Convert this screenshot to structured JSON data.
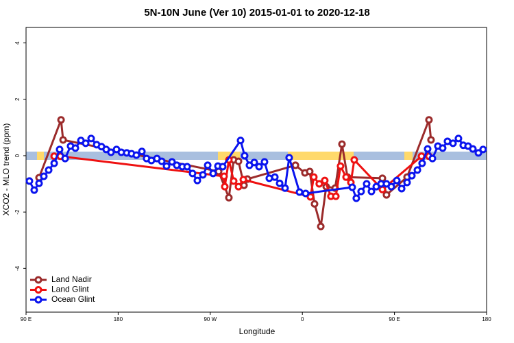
{
  "chart_data": {
    "type": "line",
    "title": "5N-10N June (Ver 10)   2015-01-01 to 2020-12-18",
    "xlabel": "Longitude",
    "ylabel": "XCO2 - MLO trend (ppm)",
    "xlim": [
      90,
      540
    ],
    "ylim": [
      -5.55,
      4.55
    ],
    "xticks": [
      {
        "value": 90,
        "label": "90 E"
      },
      180,
      {
        "value": 270,
        "label": "90 W"
      },
      {
        "value": 360,
        "label": "0"
      },
      {
        "value": 450,
        "label": "90 E"
      },
      {
        "value": 540,
        "label": "180"
      }
    ],
    "yticks": [
      -4,
      -2,
      0,
      2,
      4
    ],
    "grid": false,
    "legend": "bottom-left",
    "series": [
      {
        "name": "Land Nadir",
        "color": "#9b2b2b",
        "x": [
          102.7,
          124.2,
          126.2,
          278.2,
          288.2,
          292.9,
          297.6,
          303.0,
          306.3,
          353.2,
          362.5,
          367.2,
          371.9,
          378.0,
          383.3,
          392.0,
          398.7,
          404.1,
          438.2,
          442.2,
          462.3,
          483.7,
          485.7
        ],
        "values": [
          -0.78,
          1.27,
          0.56,
          -0.56,
          -1.49,
          -0.15,
          -0.2,
          -1.05,
          -0.83,
          -0.34,
          -0.61,
          -0.56,
          -1.71,
          -2.51,
          -1.1,
          -1.15,
          0.41,
          -0.76,
          -0.8,
          -1.39,
          -0.76,
          1.27,
          0.56
        ]
      },
      {
        "name": "Land Glint",
        "color": "#ee1111",
        "x": [
          117.5,
          123.5,
          283.5,
          284.2,
          288.2,
          292.9,
          297.6,
          302.3,
          367.9,
          371.2,
          376.5,
          381.9,
          387.9,
          392.7,
          397.3,
          402.7,
          407.4,
          410.7,
          438.2,
          476.4,
          483.7
        ],
        "values": [
          -0.02,
          -0.02,
          -0.73,
          -1.1,
          -0.15,
          -0.9,
          -1.1,
          -0.85,
          -1.46,
          -0.76,
          -1.0,
          -0.88,
          -1.44,
          -1.44,
          -0.37,
          -0.76,
          -0.95,
          -0.15,
          -1.2,
          -0.02,
          -0.02
        ]
      },
      {
        "name": "Ocean Glint",
        "color": "#0a14ee",
        "x": [
          93.3,
          98.0,
          102.7,
          107.4,
          112.1,
          117.5,
          122.8,
          128.2,
          133.5,
          138.2,
          143.6,
          148.3,
          153.6,
          159.0,
          163.7,
          168.3,
          173.0,
          178.4,
          183.1,
          188.4,
          193.1,
          197.8,
          203.2,
          207.8,
          212.5,
          217.9,
          222.6,
          227.3,
          232.6,
          237.3,
          242.7,
          247.4,
          252.7,
          257.4,
          262.8,
          267.5,
          272.8,
          277.5,
          282.2,
          299.6,
          303.6,
          308.3,
          313.0,
          317.7,
          323.0,
          327.7,
          333.1,
          337.8,
          343.1,
          347.1,
          357.2,
          363.2,
          408.7,
          412.7,
          417.4,
          422.8,
          427.5,
          432.2,
          436.9,
          442.2,
          446.9,
          452.3,
          457.0,
          462.3,
          467.0,
          472.4,
          477.0,
          482.4,
          487.1,
          492.4,
          497.1,
          501.8,
          507.2,
          512.5,
          517.2,
          521.9,
          526.6,
          532.0,
          536.6
        ],
        "values": [
          -0.9,
          -1.22,
          -0.98,
          -0.73,
          -0.51,
          -0.27,
          0.22,
          -0.1,
          0.34,
          0.27,
          0.54,
          0.44,
          0.61,
          0.39,
          0.32,
          0.22,
          0.12,
          0.22,
          0.12,
          0.1,
          0.07,
          0.02,
          0.15,
          -0.1,
          -0.17,
          -0.1,
          -0.2,
          -0.37,
          -0.22,
          -0.34,
          -0.39,
          -0.39,
          -0.63,
          -0.88,
          -0.68,
          -0.34,
          -0.63,
          -0.37,
          -0.39,
          0.54,
          0.0,
          -0.34,
          -0.24,
          -0.39,
          -0.22,
          -0.8,
          -0.76,
          -0.98,
          -1.15,
          -0.07,
          -1.29,
          -1.34,
          -1.12,
          -1.51,
          -1.27,
          -1.0,
          -1.27,
          -1.1,
          -1.0,
          -1.0,
          -1.1,
          -0.88,
          -1.17,
          -0.95,
          -0.71,
          -0.51,
          -0.27,
          0.24,
          -0.1,
          0.34,
          0.27,
          0.51,
          0.44,
          0.61,
          0.37,
          0.34,
          0.24,
          0.1,
          0.22
        ]
      }
    ]
  }
}
